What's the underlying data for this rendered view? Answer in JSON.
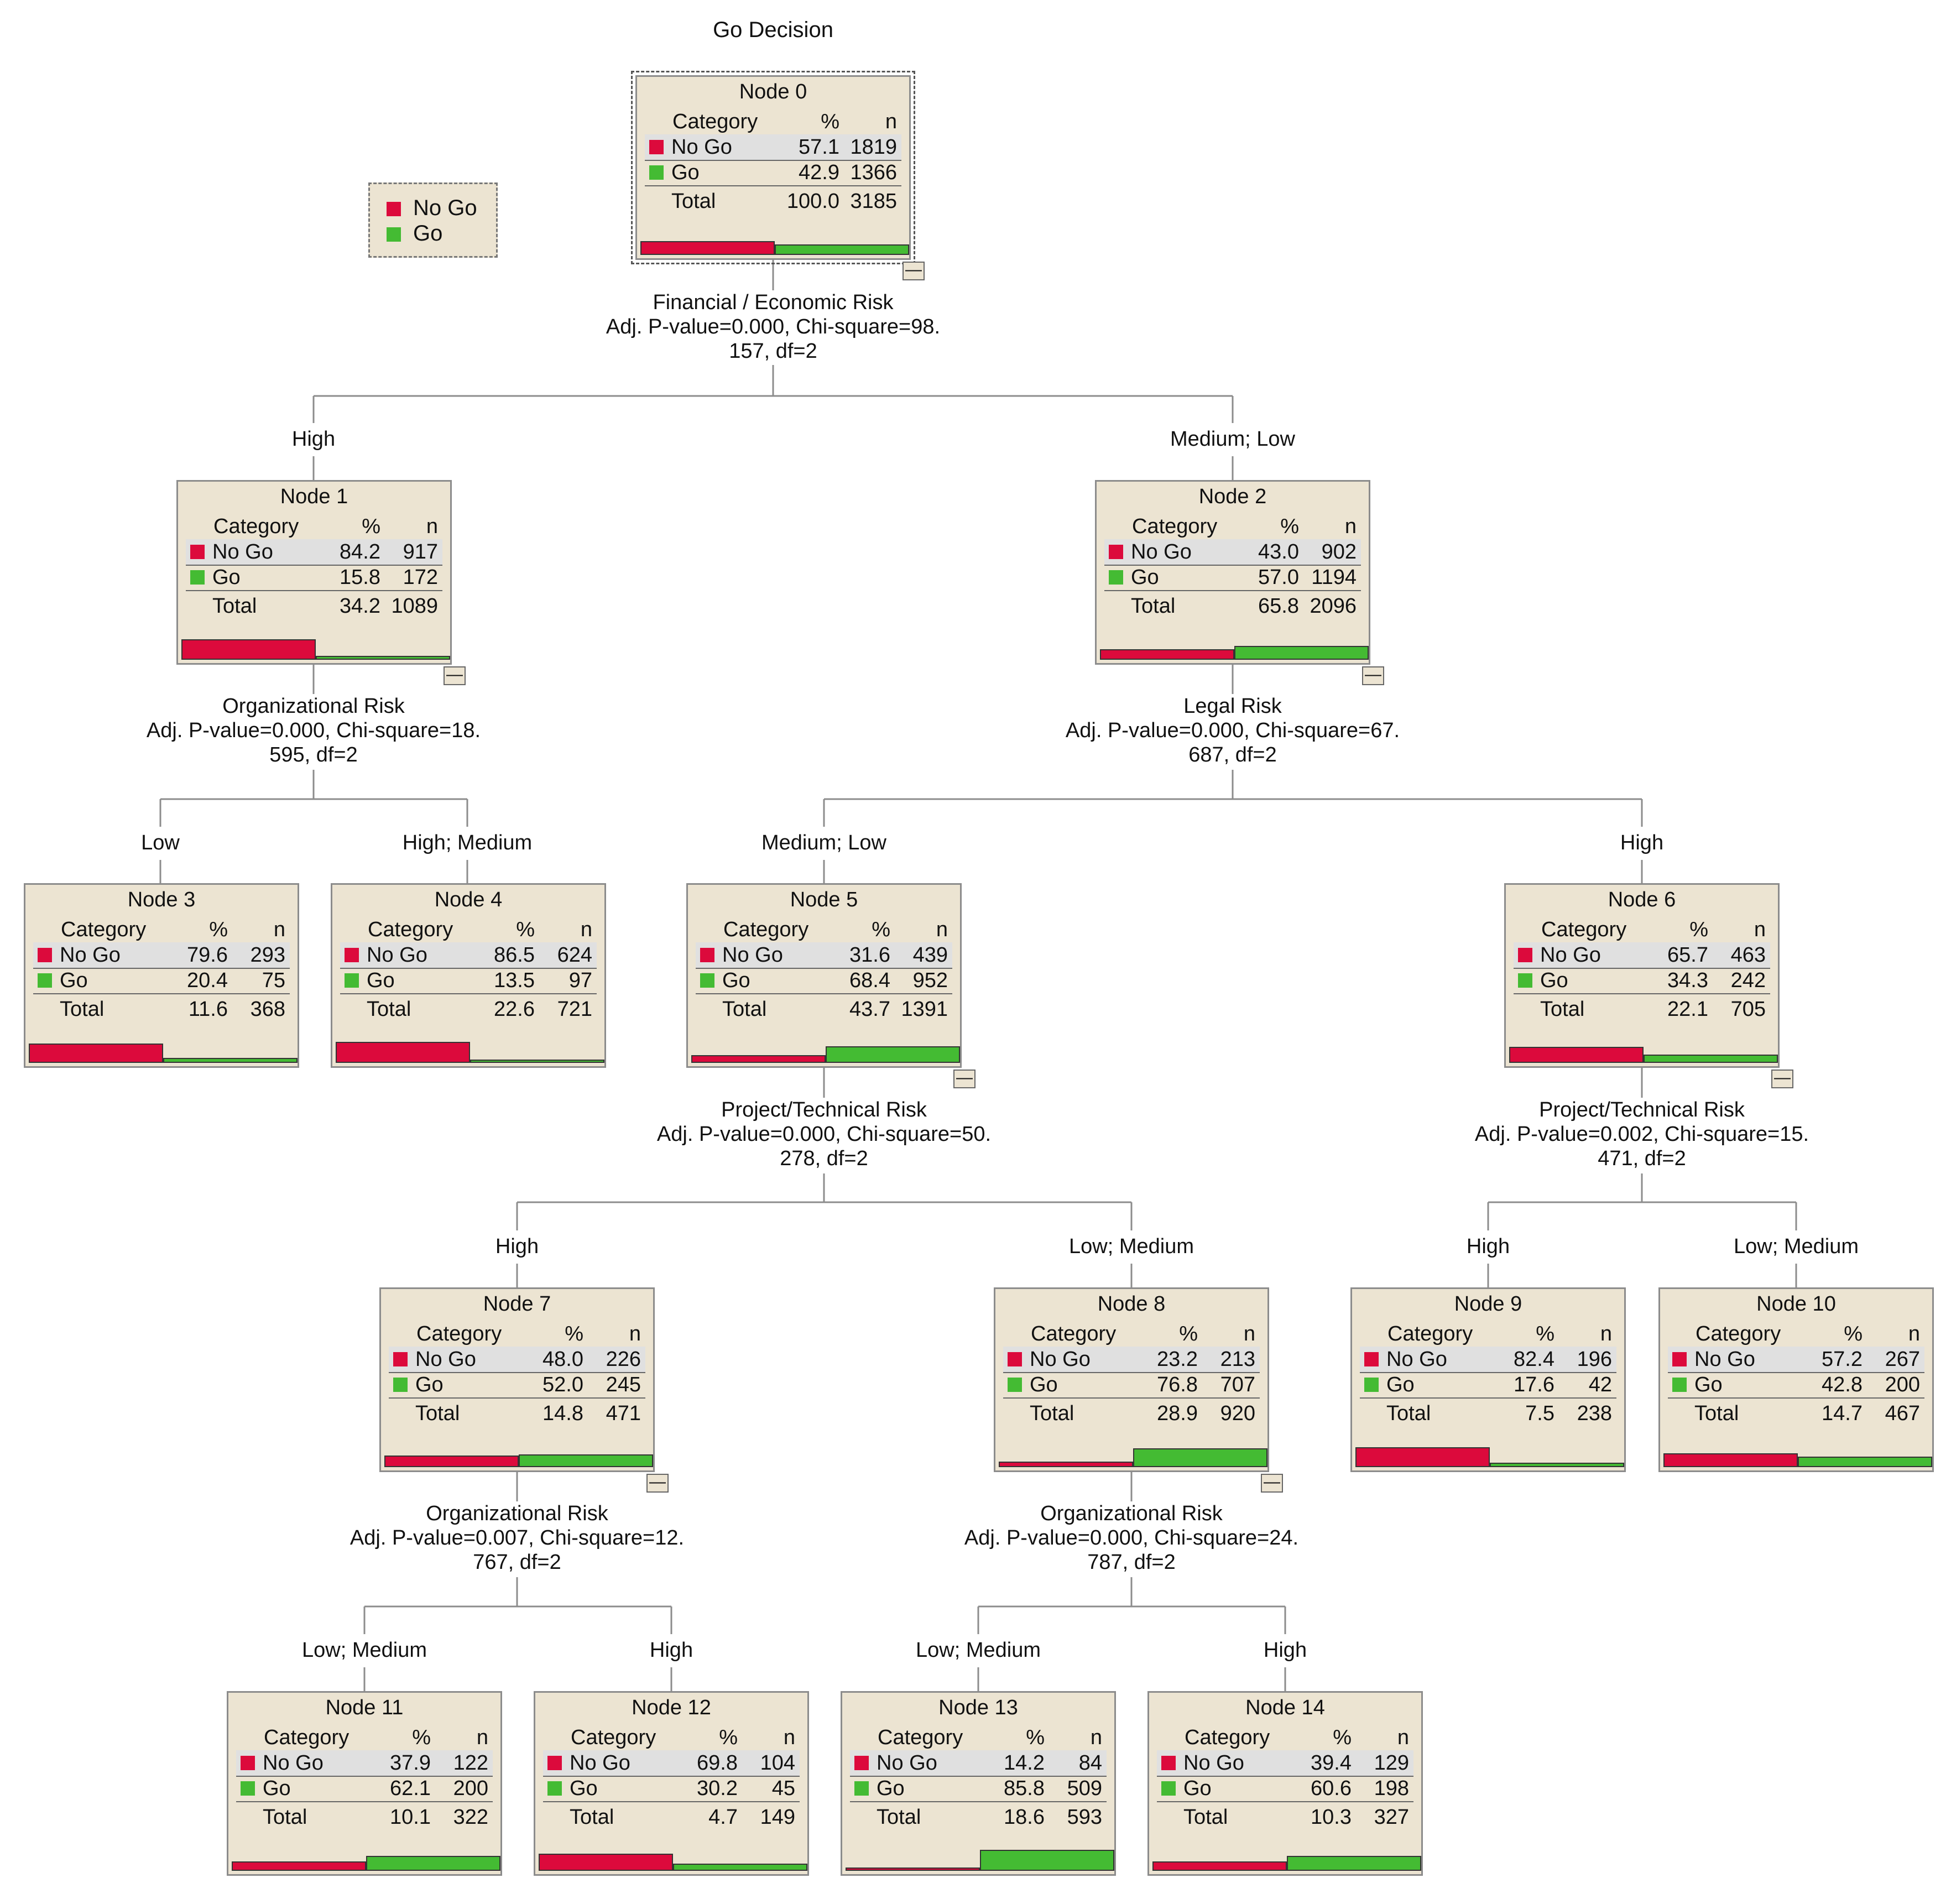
{
  "title": "Go Decision",
  "colors": {
    "no_go": "#dc0a3c",
    "go": "#44bb33",
    "node_fill": "#ece4d2"
  },
  "legend": [
    {
      "label": "No Go",
      "color": "#dc0a3c"
    },
    {
      "label": "Go",
      "color": "#44bb33"
    }
  ],
  "table_header": {
    "category": "Category",
    "pct": "%",
    "n": "n"
  },
  "row_labels": {
    "no_go": "No Go",
    "go": "Go",
    "total": "Total"
  },
  "nodes": [
    {
      "label": "Node 0",
      "no_go": {
        "pct": "57.1",
        "n": "1819"
      },
      "go": {
        "pct": "42.9",
        "n": "1366"
      },
      "total": {
        "pct": "100.0",
        "n": "3185"
      },
      "collapsible": true
    },
    {
      "label": "Node 1",
      "no_go": {
        "pct": "84.2",
        "n": "917"
      },
      "go": {
        "pct": "15.8",
        "n": "172"
      },
      "total": {
        "pct": "34.2",
        "n": "1089"
      },
      "collapsible": true
    },
    {
      "label": "Node 2",
      "no_go": {
        "pct": "43.0",
        "n": "902"
      },
      "go": {
        "pct": "57.0",
        "n": "1194"
      },
      "total": {
        "pct": "65.8",
        "n": "2096"
      },
      "collapsible": true
    },
    {
      "label": "Node 3",
      "no_go": {
        "pct": "79.6",
        "n": "293"
      },
      "go": {
        "pct": "20.4",
        "n": "75"
      },
      "total": {
        "pct": "11.6",
        "n": "368"
      },
      "collapsible": false
    },
    {
      "label": "Node 4",
      "no_go": {
        "pct": "86.5",
        "n": "624"
      },
      "go": {
        "pct": "13.5",
        "n": "97"
      },
      "total": {
        "pct": "22.6",
        "n": "721"
      },
      "collapsible": false
    },
    {
      "label": "Node 5",
      "no_go": {
        "pct": "31.6",
        "n": "439"
      },
      "go": {
        "pct": "68.4",
        "n": "952"
      },
      "total": {
        "pct": "43.7",
        "n": "1391"
      },
      "collapsible": true
    },
    {
      "label": "Node 6",
      "no_go": {
        "pct": "65.7",
        "n": "463"
      },
      "go": {
        "pct": "34.3",
        "n": "242"
      },
      "total": {
        "pct": "22.1",
        "n": "705"
      },
      "collapsible": true
    },
    {
      "label": "Node 7",
      "no_go": {
        "pct": "48.0",
        "n": "226"
      },
      "go": {
        "pct": "52.0",
        "n": "245"
      },
      "total": {
        "pct": "14.8",
        "n": "471"
      },
      "collapsible": true
    },
    {
      "label": "Node 8",
      "no_go": {
        "pct": "23.2",
        "n": "213"
      },
      "go": {
        "pct": "76.8",
        "n": "707"
      },
      "total": {
        "pct": "28.9",
        "n": "920"
      },
      "collapsible": true
    },
    {
      "label": "Node 9",
      "no_go": {
        "pct": "82.4",
        "n": "196"
      },
      "go": {
        "pct": "17.6",
        "n": "42"
      },
      "total": {
        "pct": "7.5",
        "n": "238"
      },
      "collapsible": false
    },
    {
      "label": "Node 10",
      "no_go": {
        "pct": "57.2",
        "n": "267"
      },
      "go": {
        "pct": "42.8",
        "n": "200"
      },
      "total": {
        "pct": "14.7",
        "n": "467"
      },
      "collapsible": false
    },
    {
      "label": "Node 11",
      "no_go": {
        "pct": "37.9",
        "n": "122"
      },
      "go": {
        "pct": "62.1",
        "n": "200"
      },
      "total": {
        "pct": "10.1",
        "n": "322"
      },
      "collapsible": false
    },
    {
      "label": "Node 12",
      "no_go": {
        "pct": "69.8",
        "n": "104"
      },
      "go": {
        "pct": "30.2",
        "n": "45"
      },
      "total": {
        "pct": "4.7",
        "n": "149"
      },
      "collapsible": false
    },
    {
      "label": "Node 13",
      "no_go": {
        "pct": "14.2",
        "n": "84"
      },
      "go": {
        "pct": "85.8",
        "n": "509"
      },
      "total": {
        "pct": "18.6",
        "n": "593"
      },
      "collapsible": false
    },
    {
      "label": "Node 14",
      "no_go": {
        "pct": "39.4",
        "n": "129"
      },
      "go": {
        "pct": "60.6",
        "n": "198"
      },
      "total": {
        "pct": "10.3",
        "n": "327"
      },
      "collapsible": false
    }
  ],
  "splits": [
    {
      "lines": [
        "Financial / Economic Risk",
        "Adj. P-value=0.000, Chi-square=98.",
        "157, df=2"
      ]
    },
    {
      "lines": [
        "Organizational Risk",
        "Adj. P-value=0.000, Chi-square=18.",
        "595, df=2"
      ]
    },
    {
      "lines": [
        "Legal Risk",
        "Adj. P-value=0.000, Chi-square=67.",
        "687, df=2"
      ]
    },
    {
      "lines": [
        "Project/Technical Risk",
        "Adj. P-value=0.000, Chi-square=50.",
        "278, df=2"
      ]
    },
    {
      "lines": [
        "Project/Technical Risk",
        "Adj. P-value=0.002, Chi-square=15.",
        "471, df=2"
      ]
    },
    {
      "lines": [
        "Organizational Risk",
        "Adj. P-value=0.007, Chi-square=12.",
        "767, df=2"
      ]
    },
    {
      "lines": [
        "Organizational Risk",
        "Adj. P-value=0.000, Chi-square=24.",
        "787, df=2"
      ]
    }
  ],
  "branches": [
    {
      "label": "High"
    },
    {
      "label": "Medium; Low"
    },
    {
      "label": "Low"
    },
    {
      "label": "High; Medium"
    },
    {
      "label": "Medium; Low"
    },
    {
      "label": "High"
    },
    {
      "label": "High"
    },
    {
      "label": "Low; Medium"
    },
    {
      "label": "High"
    },
    {
      "label": "Low; Medium"
    },
    {
      "label": "Low; Medium"
    },
    {
      "label": "High"
    },
    {
      "label": "Low; Medium"
    },
    {
      "label": "High"
    }
  ]
}
